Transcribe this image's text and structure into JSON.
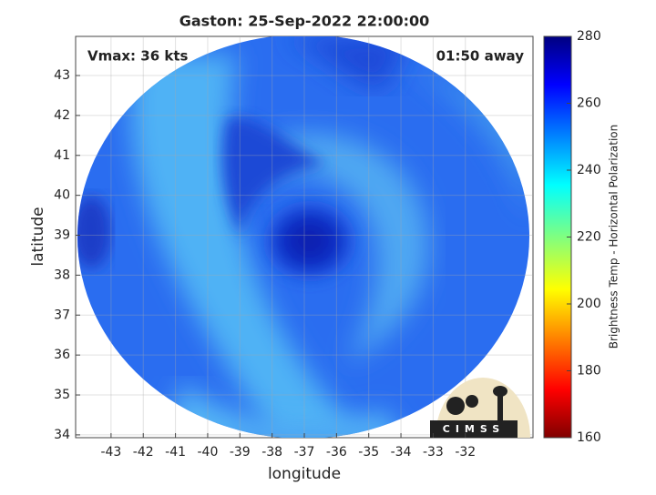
{
  "title": "Gaston: 25-Sep-2022 22:00:00",
  "annotations": {
    "vmax": "Vmax: 36 kts",
    "time_away": "01:50 away"
  },
  "axes": {
    "xlabel": "longitude",
    "ylabel": "latitude",
    "xlim": [
      -44.1,
      -29.9
    ],
    "ylim": [
      33.93,
      43.98
    ],
    "xticks": [
      -43,
      -42,
      -41,
      -40,
      -39,
      -38,
      -37,
      -36,
      -35,
      -34,
      -33,
      -32
    ],
    "yticks": [
      34,
      35,
      36,
      37,
      38,
      39,
      40,
      41,
      42,
      43
    ],
    "grid": true
  },
  "colorbar": {
    "label": "Brightness Temp - Horizontal Polarization",
    "lim": [
      160,
      280
    ],
    "ticks": [
      160,
      180,
      200,
      220,
      240,
      260,
      280
    ]
  },
  "logo": {
    "text": "CIMSS"
  }
}
